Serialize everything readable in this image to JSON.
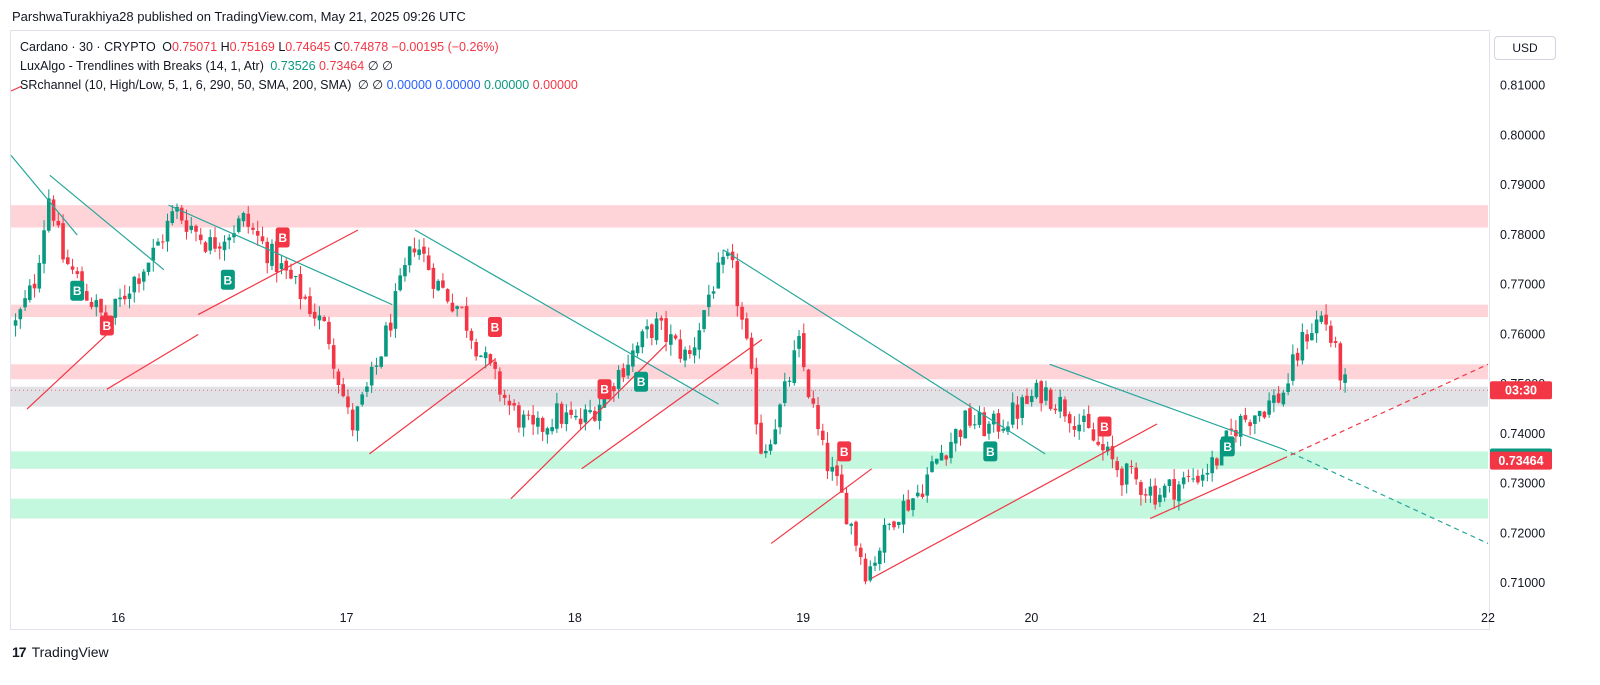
{
  "publisher_line": "ParshwaTurakhiya28 published on TradingView.com, May 21, 2025 09:26 UTC",
  "legend": {
    "symbol": "Cardano · 30 · CRYPTO",
    "o_label": "O",
    "o_value": "0.75071",
    "h_label": "H",
    "h_value": "0.75169",
    "l_label": "L",
    "l_value": "0.74645",
    "c_label": "C",
    "c_value": "0.74878",
    "change": "−0.00195 (−0.26%)",
    "indicator1": "LuxAlgo - Trendlines with Breaks (14, 1, Atr)",
    "indicator1_v1": "0.73526",
    "indicator1_v2": "0.73464",
    "indicator1_icons": "∅ ∅",
    "indicator2": "SRchannel (10, High/Low, 5, 1, 6, 290, 50, SMA, 200, SMA)",
    "indicator2_icons": "∅ ∅",
    "indicator2_values": [
      "0.00000",
      "0.00000",
      "0.00000",
      "0.00000"
    ]
  },
  "currency_button": "USD",
  "footer_brand": "TradingView",
  "footer_mark": "17",
  "colors": {
    "up": "#089981",
    "down": "#f23645",
    "trend_down": "#26a69a",
    "trend_up": "#f23645",
    "resistance_zone": "#ffcdd2",
    "support_zone": "#b9f6d8",
    "neutral_zone": "#dcdde2"
  },
  "chart_data": {
    "type": "candlestick",
    "symbol": "Cardano",
    "interval": "30",
    "ylim": [
      0.701,
      0.821
    ],
    "xlim": [
      15.53,
      22.0
    ],
    "y_ticks": [
      "0.81000",
      "0.80000",
      "0.79000",
      "0.78000",
      "0.77000",
      "0.76000",
      "0.75000",
      "0.74000",
      "0.73000",
      "0.72000",
      "0.71000"
    ],
    "x_ticks": [
      {
        "label": "16",
        "x": 16
      },
      {
        "label": "17",
        "x": 17
      },
      {
        "label": "18",
        "x": 18
      },
      {
        "label": "19",
        "x": 19
      },
      {
        "label": "20",
        "x": 20
      },
      {
        "label": "21",
        "x": 21
      },
      {
        "label": "22",
        "x": 22
      }
    ],
    "price_path": [
      [
        15.55,
        0.762
      ],
      [
        15.63,
        0.77
      ],
      [
        15.7,
        0.789
      ],
      [
        15.75,
        0.776
      ],
      [
        15.85,
        0.769
      ],
      [
        15.95,
        0.762
      ],
      [
        16.05,
        0.77
      ],
      [
        16.15,
        0.776
      ],
      [
        16.25,
        0.785
      ],
      [
        16.4,
        0.778
      ],
      [
        16.55,
        0.783
      ],
      [
        16.7,
        0.774
      ],
      [
        16.82,
        0.767
      ],
      [
        16.92,
        0.76
      ],
      [
        17.02,
        0.741
      ],
      [
        17.12,
        0.752
      ],
      [
        17.22,
        0.767
      ],
      [
        17.3,
        0.779
      ],
      [
        17.4,
        0.77
      ],
      [
        17.5,
        0.765
      ],
      [
        17.6,
        0.755
      ],
      [
        17.72,
        0.745
      ],
      [
        17.82,
        0.74
      ],
      [
        17.92,
        0.744
      ],
      [
        18.02,
        0.742
      ],
      [
        18.1,
        0.746
      ],
      [
        18.2,
        0.753
      ],
      [
        18.35,
        0.762
      ],
      [
        18.5,
        0.755
      ],
      [
        18.6,
        0.77
      ],
      [
        18.68,
        0.775
      ],
      [
        18.75,
        0.758
      ],
      [
        18.82,
        0.736
      ],
      [
        18.9,
        0.745
      ],
      [
        18.98,
        0.758
      ],
      [
        19.08,
        0.737
      ],
      [
        19.18,
        0.726
      ],
      [
        19.28,
        0.712
      ],
      [
        19.4,
        0.724
      ],
      [
        19.5,
        0.728
      ],
      [
        19.6,
        0.736
      ],
      [
        19.72,
        0.743
      ],
      [
        19.82,
        0.741
      ],
      [
        19.92,
        0.744
      ],
      [
        20.05,
        0.749
      ],
      [
        20.18,
        0.744
      ],
      [
        20.3,
        0.737
      ],
      [
        20.4,
        0.732
      ],
      [
        20.55,
        0.728
      ],
      [
        20.7,
        0.731
      ],
      [
        20.8,
        0.734
      ],
      [
        20.9,
        0.742
      ],
      [
        21.0,
        0.745
      ],
      [
        21.1,
        0.748
      ],
      [
        21.2,
        0.76
      ],
      [
        21.28,
        0.764
      ],
      [
        21.35,
        0.753
      ],
      [
        21.38,
        0.7488
      ]
    ],
    "trendlines_down": [
      [
        [
          15.53,
          0.796
        ],
        [
          15.82,
          0.78
        ]
      ],
      [
        [
          15.7,
          0.792
        ],
        [
          16.2,
          0.773
        ]
      ],
      [
        [
          16.22,
          0.786
        ],
        [
          17.2,
          0.766
        ]
      ],
      [
        [
          17.3,
          0.781
        ],
        [
          18.63,
          0.746
        ]
      ],
      [
        [
          18.65,
          0.777
        ],
        [
          20.06,
          0.736
        ]
      ],
      [
        [
          20.08,
          0.754
        ],
        [
          21.1,
          0.737
        ]
      ]
    ],
    "trendlines_up": [
      [
        [
          15.6,
          0.745
        ],
        [
          15.95,
          0.76
        ]
      ],
      [
        [
          15.95,
          0.749
        ],
        [
          16.35,
          0.76
        ]
      ],
      [
        [
          16.35,
          0.764
        ],
        [
          17.05,
          0.781
        ]
      ],
      [
        [
          17.1,
          0.736
        ],
        [
          17.65,
          0.755
        ]
      ],
      [
        [
          17.72,
          0.727
        ],
        [
          18.4,
          0.758
        ]
      ],
      [
        [
          18.03,
          0.733
        ],
        [
          18.82,
          0.759
        ]
      ],
      [
        [
          18.86,
          0.718
        ],
        [
          19.3,
          0.733
        ]
      ],
      [
        [
          19.3,
          0.711
        ],
        [
          20.55,
          0.742
        ]
      ],
      [
        [
          20.52,
          0.723
        ],
        [
          21.1,
          0.735
        ]
      ]
    ],
    "trendline_projections": [
      {
        "kind": "down",
        "from": [
          21.1,
          0.737
        ],
        "to": [
          22.0,
          0.718
        ]
      },
      {
        "kind": "up",
        "from": [
          21.1,
          0.735
        ],
        "to": [
          22.0,
          0.754
        ]
      }
    ],
    "zones": [
      {
        "kind": "resistance",
        "from": 0.7815,
        "to": 0.786
      },
      {
        "kind": "resistance",
        "from": 0.7635,
        "to": 0.766
      },
      {
        "kind": "resistance",
        "from": 0.751,
        "to": 0.754
      },
      {
        "kind": "neutral",
        "from": 0.7455,
        "to": 0.7495
      },
      {
        "kind": "support",
        "from": 0.733,
        "to": 0.7365
      },
      {
        "kind": "support",
        "from": 0.723,
        "to": 0.727
      }
    ],
    "break_labels": [
      {
        "text": "B",
        "kind": "up",
        "x": 15.82,
        "y": 0.7688
      },
      {
        "text": "B",
        "kind": "down",
        "x": 15.95,
        "y": 0.7618
      },
      {
        "text": "B",
        "kind": "up",
        "x": 16.48,
        "y": 0.771
      },
      {
        "text": "B",
        "kind": "down",
        "x": 16.72,
        "y": 0.7795
      },
      {
        "text": "B",
        "kind": "down",
        "x": 17.65,
        "y": 0.7615
      },
      {
        "text": "B",
        "kind": "down",
        "x": 18.13,
        "y": 0.749
      },
      {
        "text": "B",
        "kind": "up",
        "x": 18.29,
        "y": 0.7505
      },
      {
        "text": "B",
        "kind": "down",
        "x": 19.18,
        "y": 0.7365
      },
      {
        "text": "B",
        "kind": "up",
        "x": 19.82,
        "y": 0.7365
      },
      {
        "text": "B",
        "kind": "down",
        "x": 20.32,
        "y": 0.7415
      },
      {
        "text": "B",
        "kind": "up",
        "x": 20.86,
        "y": 0.7375
      }
    ],
    "price_tags": [
      {
        "text": "03:30",
        "kind": "down",
        "y": 0.7488
      },
      {
        "text": "0.73526",
        "kind": "up",
        "y": 0.73526
      },
      {
        "text": "0.73464",
        "kind": "down",
        "y": 0.73464
      }
    ]
  }
}
